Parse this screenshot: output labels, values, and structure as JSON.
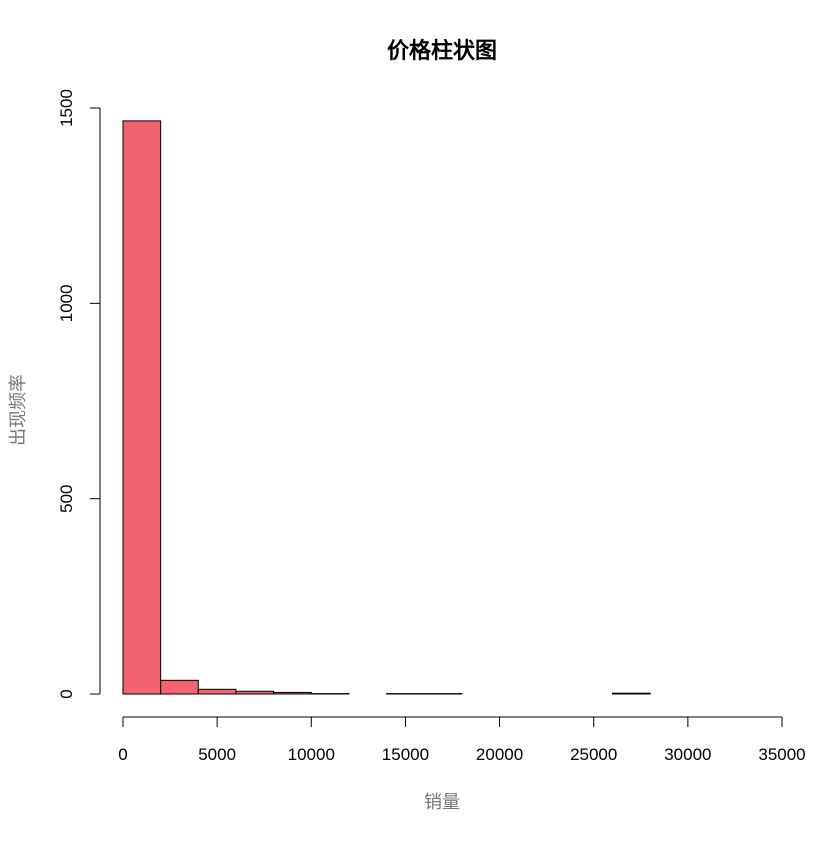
{
  "chart_data": {
    "type": "bar",
    "title": "价格柱状图",
    "xlabel": "销量",
    "ylabel": "出现频率",
    "bin_edges": [
      0,
      2000,
      4000,
      6000,
      8000,
      10000,
      12000,
      14000,
      16000,
      18000,
      20000,
      22000,
      24000,
      26000,
      28000,
      30000,
      32000,
      34000
    ],
    "values": [
      1467,
      35,
      12,
      7,
      4,
      1,
      0,
      1,
      1,
      0,
      0,
      0,
      0,
      2,
      0,
      0,
      0
    ],
    "xticks": [
      0,
      5000,
      10000,
      15000,
      20000,
      25000,
      30000,
      35000
    ],
    "xtick_labels": [
      "0",
      "5000",
      "10000",
      "15000",
      "20000",
      "25000",
      "30000",
      "35000"
    ],
    "yticks": [
      0,
      500,
      1000,
      1500
    ],
    "ytick_labels": [
      "0",
      "500",
      "1000",
      "1500"
    ],
    "xlim": [
      0,
      35000
    ],
    "ylim": [
      0,
      1500
    ],
    "bar_color": "#F5626F",
    "grid": false,
    "legend": "none"
  }
}
